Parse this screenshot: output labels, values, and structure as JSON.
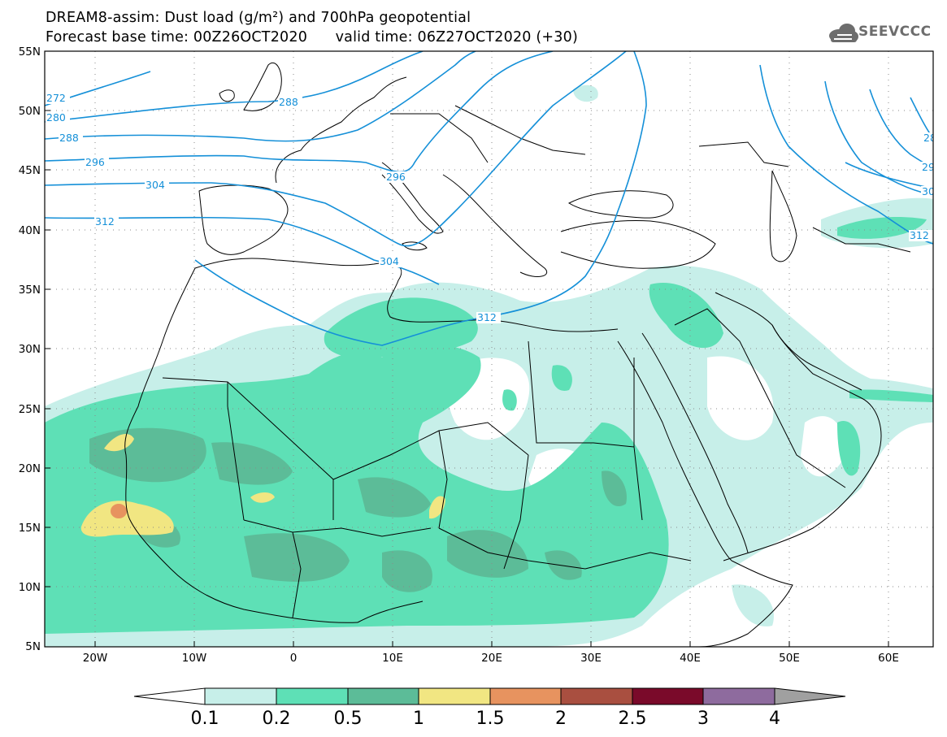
{
  "header": {
    "title_line1": "DREAM8-assim: Dust load (g/m²) and 700hPa geopotential",
    "title_line2": "Forecast base time: 00Z26OCT2020      valid time: 06Z27OCT2020 (+30)",
    "logo_text": "SEEVCCC"
  },
  "map": {
    "lat_labels": [
      "55N",
      "50N",
      "45N",
      "40N",
      "35N",
      "30N",
      "25N",
      "20N",
      "15N",
      "10N",
      "5N"
    ],
    "lon_labels": [
      "20W",
      "10W",
      "0",
      "10E",
      "20E",
      "30E",
      "40E",
      "50E",
      "60E"
    ],
    "isolines": [
      "272",
      "280",
      "288",
      "296",
      "304",
      "312",
      "288",
      "296",
      "304",
      "312",
      "28",
      "29",
      "30",
      "312"
    ],
    "colors": {
      "land_border": "#000000",
      "isoline": "#1590d8",
      "grid": "#8a8a8a"
    }
  },
  "legend": {
    "labels": [
      "0.1",
      "0.2",
      "0.5",
      "1",
      "1.5",
      "2",
      "2.5",
      "3",
      "4"
    ],
    "colors": [
      "#c7efe9",
      "#5ee0b6",
      "#5cbc98",
      "#f1e682",
      "#e7935f",
      "#a94f40",
      "#7a0a2a",
      "#8e6b9e",
      "#a0a0a0"
    ]
  }
}
